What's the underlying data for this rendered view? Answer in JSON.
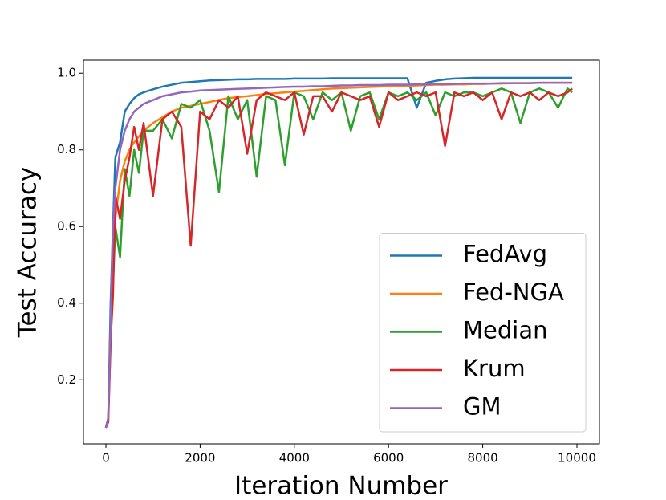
{
  "chart_data": {
    "type": "line",
    "xlabel": "Iteration Number",
    "ylabel": "Test Accuracy",
    "xlim": [
      -477,
      10477
    ],
    "ylim": [
      0.033,
      1.034
    ],
    "xticks": [
      0,
      2000,
      4000,
      6000,
      8000,
      10000
    ],
    "yticks": [
      0.2,
      0.4,
      0.6,
      0.8,
      {
        "value": 1,
        "label": "1.0"
      }
    ],
    "legend": "lower right",
    "x": [
      0,
      50,
      100,
      150,
      200,
      300,
      400,
      500,
      600,
      700,
      800,
      1000,
      1200,
      1400,
      1600,
      1800,
      2000,
      2200,
      2400,
      2600,
      2800,
      3000,
      3200,
      3400,
      3600,
      3800,
      4000,
      4200,
      4400,
      4600,
      4800,
      5000,
      5200,
      5400,
      5600,
      5800,
      6000,
      6200,
      6400,
      6600,
      6800,
      7000,
      7200,
      7400,
      7600,
      7800,
      8000,
      8200,
      8400,
      8600,
      8800,
      9000,
      9200,
      9400,
      9600,
      9800,
      9900
    ],
    "series": [
      {
        "name": "FedAvg",
        "color": "#1f77b4",
        "values": [
          0.075,
          0.1,
          0.4,
          0.6,
          0.78,
          0.82,
          0.9,
          0.92,
          0.935,
          0.945,
          0.95,
          0.958,
          0.965,
          0.97,
          0.975,
          0.977,
          0.979,
          0.981,
          0.982,
          0.983,
          0.984,
          0.984,
          0.985,
          0.985,
          0.985,
          0.985,
          0.986,
          0.986,
          0.986,
          0.986,
          0.987,
          0.987,
          0.987,
          0.987,
          0.987,
          0.987,
          0.987,
          0.987,
          0.987,
          0.91,
          0.975,
          0.98,
          0.984,
          0.986,
          0.987,
          0.988,
          0.988,
          0.988,
          0.988,
          0.988,
          0.988,
          0.988,
          0.988,
          0.988,
          0.988,
          0.988,
          0.988
        ]
      },
      {
        "name": "Fed-NGA",
        "color": "#ff7f0e",
        "values": [
          0.075,
          0.1,
          0.3,
          0.5,
          0.62,
          0.72,
          0.77,
          0.8,
          0.82,
          0.835,
          0.85,
          0.87,
          0.885,
          0.9,
          0.91,
          0.915,
          0.92,
          0.925,
          0.93,
          0.935,
          0.938,
          0.94,
          0.943,
          0.946,
          0.948,
          0.95,
          0.952,
          0.954,
          0.956,
          0.958,
          0.96,
          0.961,
          0.962,
          0.963,
          0.964,
          0.965,
          0.966,
          0.967,
          0.967,
          0.968,
          0.969,
          0.97,
          0.97,
          0.971,
          0.971,
          0.972,
          0.972,
          0.973,
          0.973,
          0.974,
          0.974,
          0.974,
          0.975,
          0.975,
          0.975,
          0.975,
          0.975
        ]
      },
      {
        "name": "Median",
        "color": "#2ca02c",
        "values": [
          0.075,
          0.1,
          0.35,
          0.45,
          0.6,
          0.52,
          0.75,
          0.68,
          0.8,
          0.74,
          0.85,
          0.85,
          0.88,
          0.83,
          0.92,
          0.91,
          0.93,
          0.85,
          0.69,
          0.94,
          0.88,
          0.93,
          0.73,
          0.94,
          0.93,
          0.76,
          0.95,
          0.94,
          0.88,
          0.95,
          0.93,
          0.95,
          0.85,
          0.94,
          0.95,
          0.88,
          0.95,
          0.94,
          0.95,
          0.93,
          0.95,
          0.89,
          0.95,
          0.94,
          0.95,
          0.95,
          0.94,
          0.95,
          0.96,
          0.95,
          0.87,
          0.95,
          0.96,
          0.95,
          0.91,
          0.96,
          0.95
        ]
      },
      {
        "name": "Krum",
        "color": "#d62728",
        "values": [
          0.075,
          0.09,
          0.3,
          0.42,
          0.68,
          0.62,
          0.72,
          0.78,
          0.86,
          0.8,
          0.87,
          0.68,
          0.88,
          0.9,
          0.86,
          0.55,
          0.9,
          0.88,
          0.93,
          0.91,
          0.94,
          0.79,
          0.93,
          0.95,
          0.94,
          0.93,
          0.95,
          0.84,
          0.94,
          0.94,
          0.9,
          0.95,
          0.94,
          0.93,
          0.94,
          0.86,
          0.95,
          0.93,
          0.94,
          0.95,
          0.94,
          0.95,
          0.81,
          0.95,
          0.94,
          0.95,
          0.93,
          0.95,
          0.88,
          0.95,
          0.94,
          0.95,
          0.93,
          0.95,
          0.94,
          0.95,
          0.96
        ]
      },
      {
        "name": "GM",
        "color": "#9467bd",
        "values": [
          0.075,
          0.1,
          0.35,
          0.6,
          0.7,
          0.8,
          0.85,
          0.88,
          0.9,
          0.91,
          0.92,
          0.93,
          0.94,
          0.945,
          0.95,
          0.952,
          0.955,
          0.956,
          0.957,
          0.958,
          0.959,
          0.96,
          0.961,
          0.962,
          0.963,
          0.964,
          0.965,
          0.965,
          0.966,
          0.966,
          0.967,
          0.968,
          0.968,
          0.969,
          0.969,
          0.969,
          0.97,
          0.97,
          0.97,
          0.971,
          0.971,
          0.972,
          0.972,
          0.972,
          0.973,
          0.973,
          0.973,
          0.973,
          0.974,
          0.974,
          0.974,
          0.974,
          0.975,
          0.975,
          0.975,
          0.975,
          0.975
        ]
      }
    ]
  }
}
